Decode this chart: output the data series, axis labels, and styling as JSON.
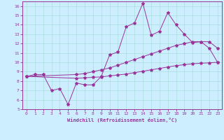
{
  "xlabel": "Windchill (Refroidissement éolien,°C)",
  "xlim": [
    -0.5,
    23.5
  ],
  "ylim": [
    5,
    16.5
  ],
  "xticks": [
    0,
    1,
    2,
    3,
    4,
    5,
    6,
    7,
    8,
    9,
    10,
    11,
    12,
    13,
    14,
    15,
    16,
    17,
    18,
    19,
    20,
    21,
    22,
    23
  ],
  "yticks": [
    5,
    6,
    7,
    8,
    9,
    10,
    11,
    12,
    13,
    14,
    15,
    16
  ],
  "background_color": "#cceeff",
  "line_color": "#993399",
  "grid_color": "#aadddd",
  "line1_x": [
    0,
    1,
    2,
    3,
    4,
    5,
    6,
    7,
    8,
    9,
    10,
    11,
    12,
    13,
    14,
    15,
    16,
    17,
    18,
    19,
    20,
    21,
    22,
    23
  ],
  "line1_y": [
    8.5,
    8.7,
    8.7,
    7.0,
    7.2,
    5.5,
    7.8,
    7.6,
    7.6,
    8.5,
    10.8,
    11.1,
    13.8,
    14.2,
    16.3,
    12.9,
    13.3,
    15.3,
    14.0,
    13.0,
    12.1,
    12.2,
    11.5,
    10.0
  ],
  "line2_x": [
    0,
    6,
    7,
    8,
    9,
    10,
    11,
    12,
    13,
    14,
    15,
    16,
    17,
    18,
    19,
    20,
    21,
    22,
    23
  ],
  "line2_y": [
    8.5,
    8.7,
    8.8,
    9.0,
    9.2,
    9.4,
    9.7,
    10.0,
    10.3,
    10.6,
    10.9,
    11.2,
    11.5,
    11.8,
    12.0,
    12.2,
    12.2,
    12.2,
    11.5
  ],
  "line3_x": [
    0,
    6,
    7,
    8,
    9,
    10,
    11,
    12,
    13,
    14,
    15,
    16,
    17,
    18,
    19,
    20,
    21,
    22,
    23
  ],
  "line3_y": [
    8.5,
    8.3,
    8.35,
    8.4,
    8.45,
    8.55,
    8.65,
    8.75,
    8.9,
    9.05,
    9.2,
    9.35,
    9.5,
    9.65,
    9.75,
    9.85,
    9.9,
    9.95,
    10.0
  ]
}
